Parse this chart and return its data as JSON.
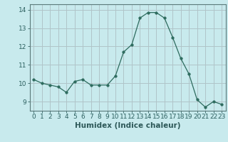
{
  "x": [
    0,
    1,
    2,
    3,
    4,
    5,
    6,
    7,
    8,
    9,
    10,
    11,
    12,
    13,
    14,
    15,
    16,
    17,
    18,
    19,
    20,
    21,
    22,
    23
  ],
  "y": [
    10.2,
    10.0,
    9.9,
    9.8,
    9.5,
    10.1,
    10.2,
    9.9,
    9.9,
    9.9,
    10.4,
    11.7,
    12.1,
    13.55,
    13.85,
    13.85,
    13.55,
    12.5,
    11.35,
    10.5,
    9.1,
    8.7,
    9.0,
    8.85
  ],
  "ylim": [
    8.5,
    14.3
  ],
  "yticks": [
    9,
    10,
    11,
    12,
    13,
    14
  ],
  "xlim": [
    -0.5,
    23.5
  ],
  "xticks": [
    0,
    1,
    2,
    3,
    4,
    5,
    6,
    7,
    8,
    9,
    10,
    11,
    12,
    13,
    14,
    15,
    16,
    17,
    18,
    19,
    20,
    21,
    22,
    23
  ],
  "xlabel": "Humidex (Indice chaleur)",
  "line_color": "#2d6b5e",
  "marker": "o",
  "marker_size": 2.5,
  "bg_color": "#c8eaed",
  "grid_color": "#b0c4c8",
  "axis_color": "#5a7a7a",
  "tick_color": "#2d6060",
  "label_color": "#2d5858",
  "xlabel_fontsize": 7.5,
  "tick_fontsize": 6.5
}
